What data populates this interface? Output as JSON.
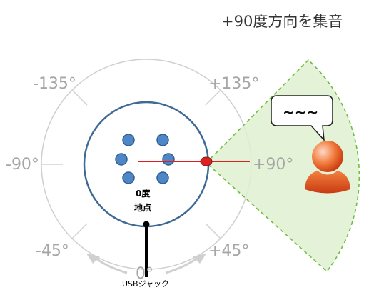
{
  "caption": "+90度方向を集音",
  "angles": {
    "a_m135": "-135°",
    "a_p135": "+135°",
    "a_m90": "-90°",
    "a_p90": "+90°",
    "a_m45": "-45°",
    "a_p45": "+45°",
    "a_0": "0°"
  },
  "center_label": {
    "line1": "0度",
    "line2": "地点"
  },
  "jack_label": "USBジャック",
  "speech_bubble": "~~~",
  "colors": {
    "ring": "#cfcfcf",
    "device_border": "#3f6a94",
    "mic": "#4f86c6",
    "mic_border": "#2f5f92",
    "beam_line": "#e02020",
    "beam_fill": "#dff0d0",
    "beam_border": "#6fbf3f",
    "person": "#e8551f",
    "angle_text": "#a6a6a6"
  }
}
